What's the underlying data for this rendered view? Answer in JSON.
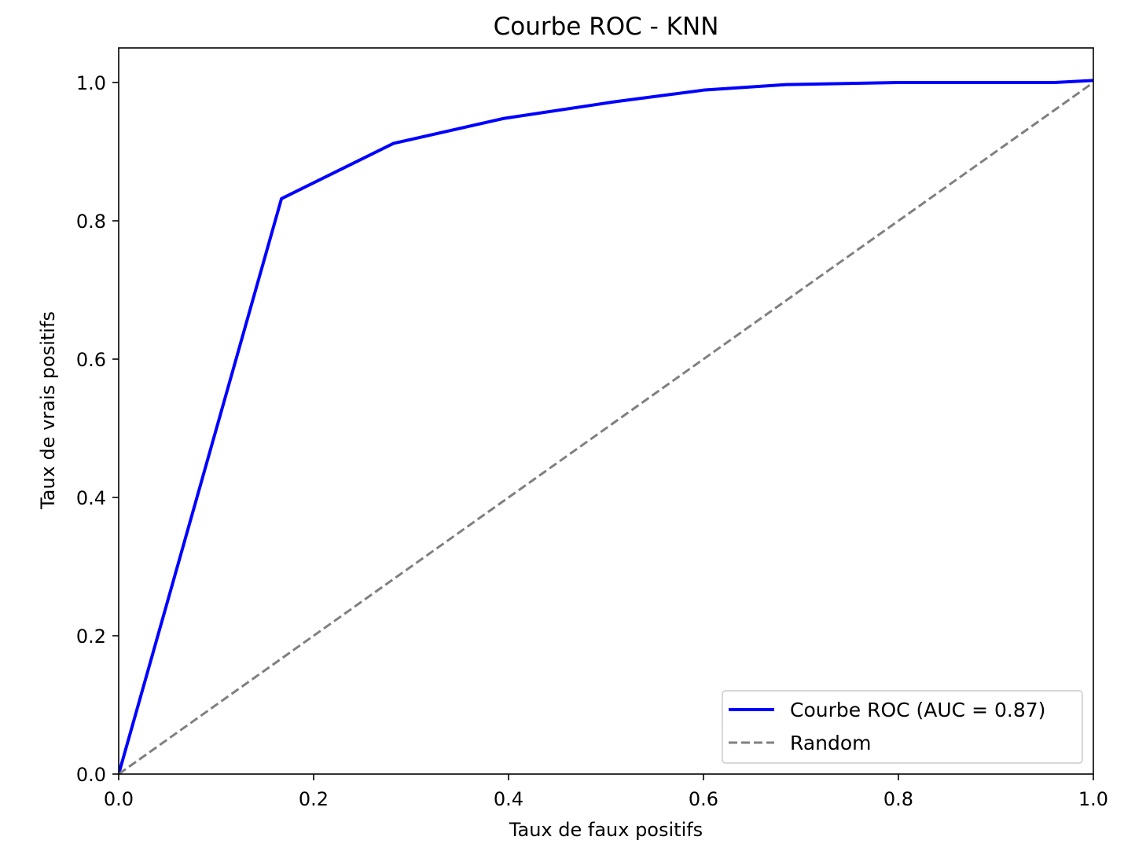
{
  "chart_data": {
    "type": "line",
    "title": "Courbe ROC - KNN",
    "xlabel": "Taux de faux positifs",
    "ylabel": "Taux de vrais positifs",
    "xlim": [
      0.0,
      1.0
    ],
    "ylim": [
      0.0,
      1.05
    ],
    "x_ticks": [
      "0.0",
      "0.2",
      "0.4",
      "0.6",
      "0.8",
      "1.0"
    ],
    "y_ticks": [
      "0.0",
      "0.2",
      "0.4",
      "0.6",
      "0.8",
      "1.0"
    ],
    "grid": false,
    "legend_position": "lower right",
    "series": [
      {
        "name": "Courbe ROC (AUC = 0.87)",
        "color": "#0000ff",
        "style": "solid",
        "x": [
          0.0,
          0.167,
          0.282,
          0.395,
          0.508,
          0.6,
          0.685,
          0.8,
          0.96,
          1.0
        ],
        "y": [
          0.0,
          0.832,
          0.912,
          0.948,
          0.972,
          0.989,
          0.997,
          1.0,
          1.0,
          1.003
        ]
      },
      {
        "name": "Random",
        "color": "#808080",
        "style": "dashed",
        "x": [
          0.0,
          1.0
        ],
        "y": [
          0.0,
          1.0
        ]
      }
    ]
  }
}
